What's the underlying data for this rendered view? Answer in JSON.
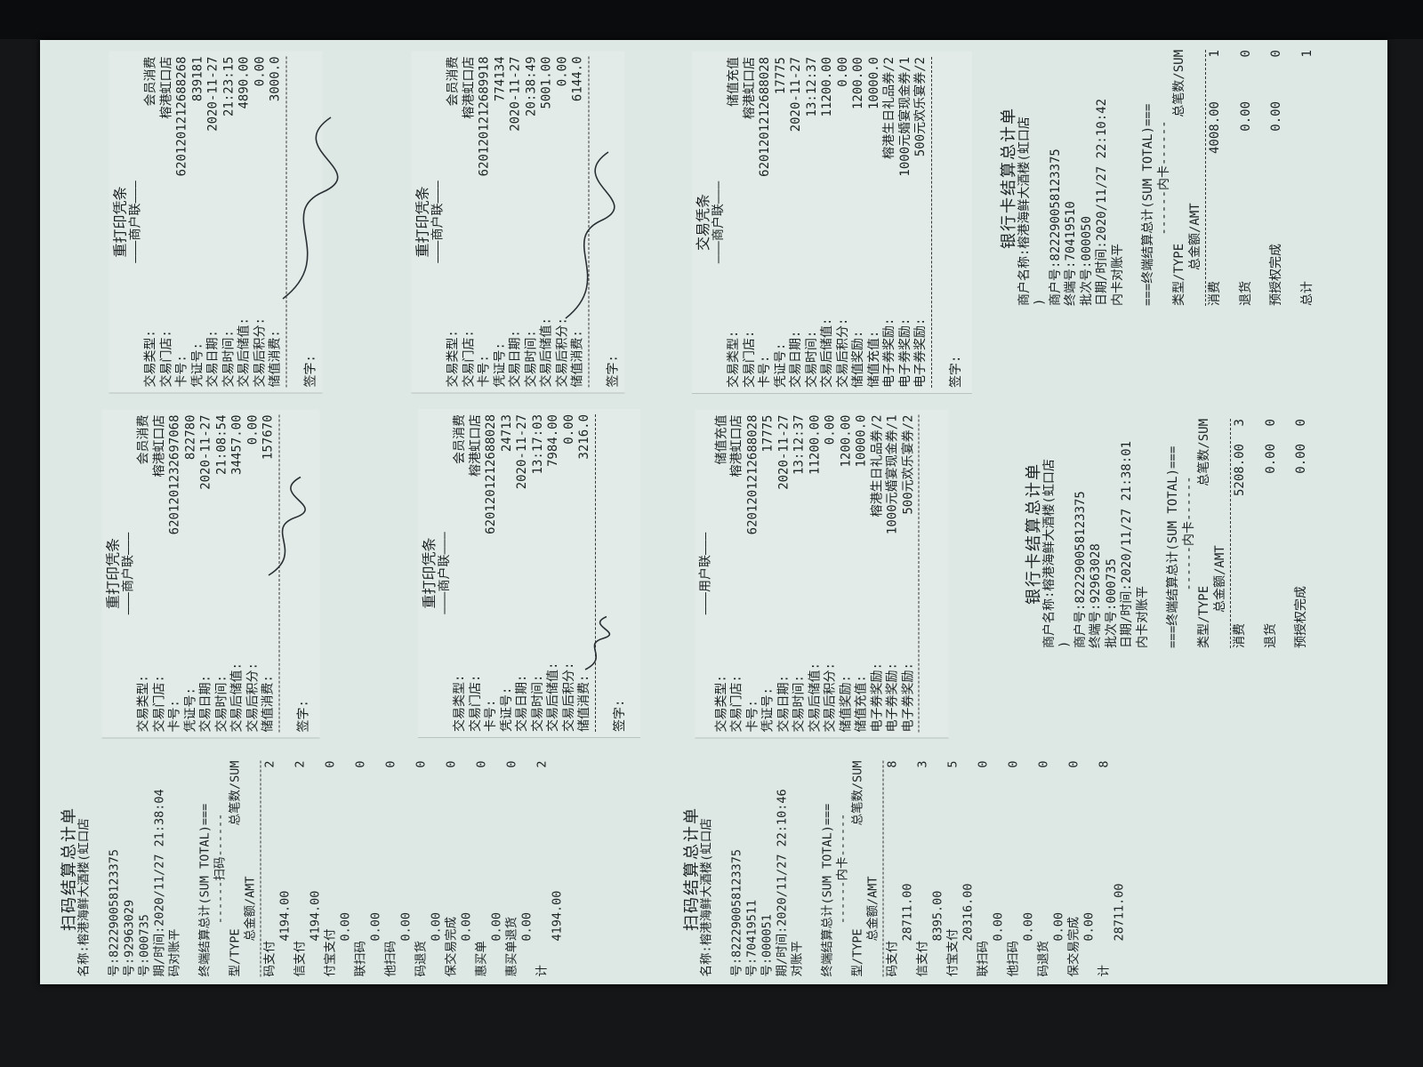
{
  "slips": [
    {
      "title": "重打印凭条",
      "copy": "商户联",
      "sign_label": "签字:",
      "fields": [
        [
          "交易类型:",
          "会员消费"
        ],
        [
          "交易门店:",
          "榕港虹口店"
        ],
        [
          "卡号:",
          "6201201212688268"
        ],
        [
          "凭证号:",
          "839181"
        ],
        [
          "交易日期:",
          "2020-11-27"
        ],
        [
          "交易时间:",
          "21:23:15"
        ],
        [
          "交易后储值:",
          "4890.00"
        ],
        [
          "交易后积分:",
          "0.00"
        ],
        [
          "储值消费:",
          "3000.0"
        ]
      ]
    },
    {
      "title": "重打印凭条",
      "copy": "商户联",
      "sign_label": "签字:",
      "fields": [
        [
          "交易类型:",
          "会员消费"
        ],
        [
          "交易门店:",
          "榕港虹口店"
        ],
        [
          "卡号:",
          "6201201212689918"
        ],
        [
          "凭证号:",
          "774134"
        ],
        [
          "交易日期:",
          "2020-11-27"
        ],
        [
          "交易时间:",
          "20:38:49"
        ],
        [
          "交易后储值:",
          "5001.00"
        ],
        [
          "交易后积分:",
          "0.00"
        ],
        [
          "储值消费:",
          "6144.0"
        ]
      ]
    },
    {
      "title": "交易凭条",
      "copy": "商户联",
      "sign_label": "签字:",
      "fields": [
        [
          "交易类型:",
          "储值充值"
        ],
        [
          "交易门店:",
          "榕港虹口店"
        ],
        [
          "卡号:",
          "6201201212688028"
        ],
        [
          "凭证号:",
          "17775"
        ],
        [
          "交易日期:",
          "2020-11-27"
        ],
        [
          "交易时间:",
          "13:12:37"
        ],
        [
          "交易后储值:",
          "11200.00"
        ],
        [
          "交易后积分:",
          "0.00"
        ],
        [
          "储值奖励:",
          "1200.00"
        ],
        [
          "储值充值:",
          "10000.0"
        ],
        [
          "电子券奖励:",
          "榕港生日礼品券/2"
        ],
        [
          "电子券奖励:",
          "1000元婚宴现金券/1"
        ],
        [
          "电子券奖励:",
          "500元欢乐宴券/2"
        ]
      ]
    },
    {
      "title": "重打印凭条",
      "copy": "商户联",
      "sign_label": "签字:",
      "fields": [
        [
          "交易类型:",
          "会员消费"
        ],
        [
          "交易门店:",
          "榕港虹口店"
        ],
        [
          "卡号:",
          "6201201232697068"
        ],
        [
          "凭证号:",
          "822780"
        ],
        [
          "交易日期:",
          "2020-11-27"
        ],
        [
          "交易时间:",
          "21:08:54"
        ],
        [
          "交易后储值:",
          "34457.00"
        ],
        [
          "交易后积分:",
          "0.00"
        ],
        [
          "储值消费:",
          "157670"
        ]
      ]
    },
    {
      "title": "重打印凭条",
      "copy": "商户联",
      "sign_label": "签字:",
      "fields": [
        [
          "交易类型:",
          "会员消费"
        ],
        [
          "交易门店:",
          "榕港虹口店"
        ],
        [
          "卡号:",
          "6201201212688028"
        ],
        [
          "凭证号:",
          "24713"
        ],
        [
          "交易日期:",
          "2020-11-27"
        ],
        [
          "交易时间:",
          "13:17:03"
        ],
        [
          "交易后储值:",
          "7984.00"
        ],
        [
          "交易后积分:",
          "0.00"
        ],
        [
          "储值消费:",
          "3216.0"
        ]
      ]
    },
    {
      "title": "",
      "copy": "用户联",
      "sign_label": "",
      "fields": [
        [
          "交易类型:",
          "储值充值"
        ],
        [
          "交易门店:",
          "榕港虹口店"
        ],
        [
          "卡号:",
          "6201201212688028"
        ],
        [
          "凭证号:",
          "17775"
        ],
        [
          "交易日期:",
          "2020-11-27"
        ],
        [
          "交易时间:",
          "13:12:37"
        ],
        [
          "交易后储值:",
          "11200.00"
        ],
        [
          "交易后积分:",
          "0.00"
        ],
        [
          "储值奖励:",
          "1200.00"
        ],
        [
          "储值充值:",
          "10000.0"
        ],
        [
          "电子券奖励:",
          "榕港生日礼品券/2"
        ],
        [
          "电子券奖励:",
          "1000元婚宴现金券/1"
        ],
        [
          "电子券奖励:",
          "500元欢乐宴券/2"
        ]
      ]
    }
  ],
  "bank": [
    {
      "title": "银行卡结算总计单",
      "merchant": "商户名称:榕港海鲜大酒楼(虹口店",
      "merchant_tail": ")",
      "merchant_no": "商户号:822290058123375",
      "terminal": "终端号:70419510",
      "batch": "批次号:000050",
      "datetime": "日期/时间:2020/11/27 22:10:42",
      "status": "内卡对账平",
      "sum_total": "===终端结算总计(SUM TOTAL)===",
      "section": "内卡",
      "type_hdr": "类型/TYPE",
      "sum_hdr": "总笔数/SUM",
      "amt_hdr": "总金额/AMT",
      "rows": [
        [
          "消费",
          "4008.00",
          "1"
        ],
        [
          "退货",
          "0.00",
          "0"
        ],
        [
          "预授权完成",
          "0.00",
          "0"
        ],
        [
          "总计",
          "",
          "1"
        ]
      ]
    },
    {
      "title": "银行卡结算总计单",
      "merchant": "商户名称:榕港海鲜大酒楼(虹口店",
      "merchant_tail": ")",
      "merchant_no": "商户号:822290058123375",
      "terminal": "终端号:92963028",
      "batch": "批次号:000735",
      "datetime": "日期/时间:2020/11/27 21:38:01",
      "status": "内卡对账平",
      "sum_total": "===终端结算总计(SUM TOTAL)===",
      "section": "内卡",
      "type_hdr": "类型/TYPE",
      "sum_hdr": "总笔数/SUM",
      "amt_hdr": "总金额/AMT",
      "rows": [
        [
          "消费",
          "5208.00",
          "3"
        ],
        [
          "退货",
          "0.00",
          "0"
        ],
        [
          "预授权完成",
          "0.00",
          "0"
        ]
      ]
    }
  ],
  "scan": [
    {
      "title": "扫码结算总计单",
      "merchant": "名称:榕港海鲜大酒楼(虹口店",
      "merchant_no": "号:822290058123375",
      "terminal": "号:92963029",
      "batch": "号:000735",
      "datetime": "期/时间:2020/11/27 21:38:04",
      "status": "码对账平",
      "sum_total": "终端结算总计(SUM TOTAL)===",
      "section": "扫码",
      "type_hdr": "型/TYPE",
      "sum_hdr": "总笔数/SUM",
      "amt_hdr": "总金额/AMT",
      "rows": [
        [
          "码支付",
          "4194.00",
          "2"
        ],
        [
          "信支付",
          "4194.00",
          "2"
        ],
        [
          "付宝支付",
          "0.00",
          "0"
        ],
        [
          "联扫码",
          "0.00",
          "0"
        ],
        [
          "他扫码",
          "0.00",
          "0"
        ],
        [
          "码退货",
          "0.00",
          "0"
        ],
        [
          "保交易完成",
          "0.00",
          "0"
        ],
        [
          "惠买单",
          "0.00",
          "0"
        ],
        [
          "惠买单退货",
          "0.00",
          "0"
        ],
        [
          "计",
          "4194.00",
          "2"
        ]
      ]
    },
    {
      "title": "扫码结算总计单",
      "merchant": "名称:榕港海鲜大酒楼(虹口店",
      "merchant_no": "号:822290058123375",
      "terminal": "号:70419511",
      "batch": "号:000051",
      "datetime": "期/时间:2020/11/27 22:10:46",
      "status": "对账平",
      "sum_total": "终端结算总计(SUM TOTAL)===",
      "section": "内卡",
      "type_hdr": "型/TYPE",
      "sum_hdr": "总笔数/SUM",
      "amt_hdr": "总金额/AMT",
      "rows": [
        [
          "码支付",
          "28711.00",
          "8"
        ],
        [
          "信支付",
          "8395.00",
          "3"
        ],
        [
          "付宝支付",
          "20316.00",
          "5"
        ],
        [
          "联扫码",
          "0.00",
          "0"
        ],
        [
          "他扫码",
          "0.00",
          "0"
        ],
        [
          "码退货",
          "0.00",
          "0"
        ],
        [
          "保交易完成",
          "0.00",
          "0"
        ],
        [
          "计",
          "28711.00",
          "8"
        ]
      ]
    }
  ]
}
